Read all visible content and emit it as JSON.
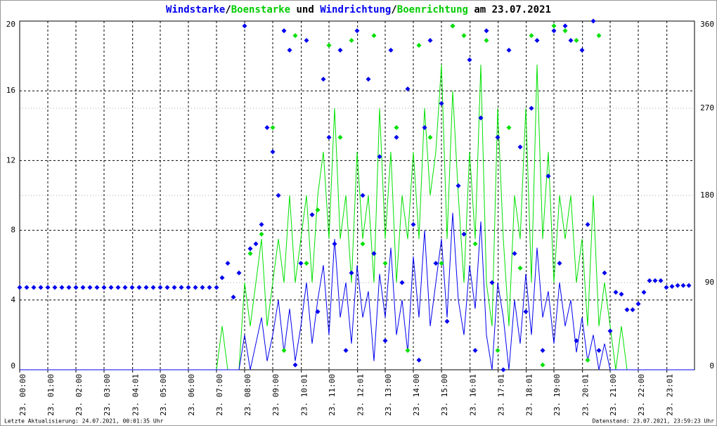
{
  "chart_data": {
    "type": "line",
    "title_separators": [
      "/",
      " und ",
      "/",
      " am 23.07.2021"
    ],
    "footer_left": "Letzte Aktualisierung: 24.07.2021, 00:01:35 Uhr",
    "footer_right": "Datenstand: 23.07.2021, 23:59:23 Uhr",
    "xlim": [
      0,
      24
    ],
    "xticks": [
      {
        "value": 0,
        "label": "23. 00:00"
      },
      {
        "value": 1,
        "label": "23. 01:00"
      },
      {
        "value": 2,
        "label": "23. 02:00"
      },
      {
        "value": 3,
        "label": "23. 03:00"
      },
      {
        "value": 4.017,
        "label": "23. 04:01"
      },
      {
        "value": 5,
        "label": "23. 05:00"
      },
      {
        "value": 6,
        "label": "23. 06:00"
      },
      {
        "value": 7,
        "label": "23. 07:00"
      },
      {
        "value": 8,
        "label": "23. 08:00"
      },
      {
        "value": 9,
        "label": "23. 09:00"
      },
      {
        "value": 10.017,
        "label": "23. 10:01"
      },
      {
        "value": 11,
        "label": "23. 11:00"
      },
      {
        "value": 12.017,
        "label": "23. 12:01"
      },
      {
        "value": 13,
        "label": "23. 13:00"
      },
      {
        "value": 14,
        "label": "23. 14:00"
      },
      {
        "value": 15,
        "label": "23. 15:00"
      },
      {
        "value": 16.017,
        "label": "23. 16:01"
      },
      {
        "value": 17.017,
        "label": "23. 17:01"
      },
      {
        "value": 18.017,
        "label": "23. 18:01"
      },
      {
        "value": 19,
        "label": "23. 19:00"
      },
      {
        "value": 20.017,
        "label": "23. 20:01"
      },
      {
        "value": 21,
        "label": "23. 21:00"
      },
      {
        "value": 22,
        "label": "23. 22:00"
      },
      {
        "value": 23.017,
        "label": "23. 23:01"
      }
    ],
    "ylim": [
      0,
      20
    ],
    "yticks": [
      0,
      4,
      8,
      12,
      16,
      20
    ],
    "y2lim": [
      0,
      360
    ],
    "y2ticks": [
      0,
      90,
      180,
      270,
      360
    ],
    "grid": true,
    "series": [
      {
        "name": "Boenstarke",
        "type": "line",
        "color": "#00e000",
        "x": [
          0,
          7.0,
          7.2,
          7.4,
          7.6,
          7.8,
          8.0,
          8.2,
          8.4,
          8.6,
          8.8,
          9.0,
          9.2,
          9.4,
          9.6,
          9.8,
          10.0,
          10.2,
          10.4,
          10.6,
          10.8,
          11.0,
          11.2,
          11.4,
          11.6,
          11.8,
          12.0,
          12.2,
          12.4,
          12.6,
          12.8,
          13.0,
          13.2,
          13.4,
          13.6,
          13.8,
          14.0,
          14.2,
          14.4,
          14.6,
          14.8,
          15.0,
          15.2,
          15.4,
          15.6,
          15.8,
          16.0,
          16.2,
          16.4,
          16.6,
          16.8,
          17.0,
          17.2,
          17.4,
          17.6,
          17.8,
          18.0,
          18.2,
          18.4,
          18.6,
          18.8,
          19.0,
          19.2,
          19.4,
          19.6,
          19.8,
          20.0,
          20.2,
          20.4,
          20.6,
          20.8,
          21.0,
          21.2,
          21.4,
          21.6,
          22,
          24
        ],
        "values": [
          0,
          0,
          2.5,
          0,
          0,
          0,
          5,
          2.5,
          5,
          7.5,
          2.5,
          5,
          7.5,
          5,
          10,
          5,
          7.5,
          10,
          5,
          10,
          12.5,
          7.5,
          15,
          7.5,
          10,
          5,
          12.5,
          7.5,
          10,
          5,
          15,
          7.5,
          12.5,
          5,
          10,
          7.5,
          12.5,
          7.5,
          15,
          10,
          12.5,
          17.5,
          7.5,
          16,
          10,
          5,
          12.5,
          7.5,
          17.5,
          5,
          2.5,
          15,
          7.5,
          2.5,
          10,
          7.5,
          15,
          5,
          17.5,
          7.5,
          12.5,
          5,
          10,
          7.5,
          10,
          5,
          7.5,
          2.5,
          10,
          2.5,
          5,
          2.5,
          0,
          2.5,
          0,
          0,
          0
        ]
      },
      {
        "name": "Windstarke",
        "type": "line",
        "color": "#0000ee",
        "x": [
          0,
          7.0,
          7.2,
          7.4,
          7.6,
          7.8,
          8.0,
          8.2,
          8.4,
          8.6,
          8.8,
          9.0,
          9.2,
          9.4,
          9.6,
          9.8,
          10.0,
          10.2,
          10.4,
          10.6,
          10.8,
          11.0,
          11.2,
          11.4,
          11.6,
          11.8,
          12.0,
          12.2,
          12.4,
          12.6,
          12.8,
          13.0,
          13.2,
          13.4,
          13.6,
          13.8,
          14.0,
          14.2,
          14.4,
          14.6,
          14.8,
          15.0,
          15.2,
          15.4,
          15.6,
          15.8,
          16.0,
          16.2,
          16.4,
          16.6,
          16.8,
          17.0,
          17.2,
          17.4,
          17.6,
          17.8,
          18.0,
          18.2,
          18.4,
          18.6,
          18.8,
          19.0,
          19.2,
          19.4,
          19.6,
          19.8,
          20.0,
          20.2,
          20.4,
          20.6,
          20.8,
          21.0,
          21.2,
          21.4,
          21.6,
          22,
          24
        ],
        "values": [
          0,
          0,
          0,
          0,
          0,
          0,
          2,
          0,
          1.5,
          3,
          0.5,
          2,
          4,
          1,
          3.5,
          0.5,
          2.5,
          5,
          1.5,
          4,
          6,
          2,
          7.5,
          3,
          5,
          1.5,
          6,
          3,
          4.5,
          0.5,
          5.5,
          3,
          7,
          2,
          4,
          1,
          6.5,
          3,
          8,
          2.5,
          5,
          7.5,
          3,
          9,
          4,
          2,
          6,
          3.5,
          8.5,
          2,
          0,
          5,
          3,
          0,
          4,
          1.5,
          5.5,
          2,
          7,
          3,
          4.5,
          1.5,
          5,
          2.5,
          4,
          1,
          3,
          0.5,
          2,
          0,
          1.5,
          0,
          0,
          0,
          0,
          0,
          0
        ]
      },
      {
        "name": "Windrichtung",
        "type": "scatter",
        "axis": "y2",
        "color": "#0000ee",
        "x": [
          0,
          0.25,
          0.5,
          0.75,
          1,
          1.25,
          1.5,
          1.75,
          2,
          2.25,
          2.5,
          2.75,
          3,
          3.25,
          3.5,
          3.75,
          4,
          4.25,
          4.5,
          4.75,
          5,
          5.25,
          5.5,
          5.75,
          6,
          6.25,
          6.5,
          6.75,
          7,
          7.2,
          7.4,
          7.6,
          7.8,
          8.0,
          8.2,
          8.4,
          8.6,
          8.8,
          9.0,
          9.2,
          9.4,
          9.6,
          9.8,
          10.0,
          10.2,
          10.4,
          10.6,
          10.8,
          11.0,
          11.2,
          11.4,
          11.6,
          11.8,
          12.0,
          12.2,
          12.4,
          12.6,
          12.8,
          13.0,
          13.2,
          13.4,
          13.6,
          13.8,
          14.0,
          14.2,
          14.4,
          14.6,
          14.8,
          15.0,
          15.2,
          15.4,
          15.6,
          15.8,
          16.0,
          16.2,
          16.4,
          16.6,
          16.8,
          17.0,
          17.2,
          17.4,
          17.6,
          17.8,
          18.0,
          18.2,
          18.4,
          18.6,
          18.8,
          19.0,
          19.2,
          19.4,
          19.6,
          19.8,
          20.0,
          20.2,
          20.4,
          20.6,
          20.8,
          21.0,
          21.2,
          21.4,
          21.6,
          21.8,
          22.0,
          22.2,
          22.4,
          22.6,
          22.8,
          23.0,
          23.2,
          23.4,
          23.6,
          23.8
        ],
        "values": [
          85,
          85,
          85,
          85,
          85,
          85,
          85,
          85,
          85,
          85,
          85,
          85,
          85,
          85,
          85,
          85,
          85,
          85,
          85,
          85,
          85,
          85,
          85,
          85,
          85,
          85,
          85,
          85,
          85,
          95,
          110,
          75,
          100,
          355,
          125,
          130,
          150,
          250,
          225,
          180,
          350,
          330,
          5,
          110,
          340,
          160,
          60,
          300,
          240,
          130,
          330,
          20,
          100,
          350,
          180,
          300,
          120,
          220,
          30,
          330,
          240,
          90,
          290,
          150,
          10,
          250,
          340,
          110,
          275,
          50,
          355,
          190,
          140,
          320,
          20,
          260,
          350,
          90,
          240,
          0,
          330,
          120,
          230,
          60,
          270,
          340,
          20,
          200,
          350,
          110,
          355,
          340,
          30,
          330,
          150,
          360,
          20,
          100,
          40,
          80,
          78,
          62,
          62,
          68,
          80,
          92,
          92,
          92,
          85,
          86,
          87,
          87,
          87
        ]
      },
      {
        "name": "Boenrichtung",
        "type": "scatter",
        "axis": "y2",
        "color": "#00e000",
        "x": [
          8.2,
          8.6,
          9.0,
          9.4,
          9.8,
          10.2,
          10.6,
          11.0,
          11.4,
          11.8,
          12.2,
          12.6,
          13.0,
          13.4,
          13.8,
          14.2,
          14.6,
          15.0,
          15.4,
          15.8,
          16.2,
          16.6,
          17.0,
          17.4,
          17.8,
          18.2,
          18.6,
          19.0,
          19.4,
          19.8,
          20.2,
          20.6
        ],
        "values": [
          120,
          140,
          250,
          20,
          345,
          110,
          165,
          335,
          240,
          340,
          130,
          345,
          110,
          250,
          20,
          335,
          240,
          110,
          355,
          345,
          130,
          340,
          20,
          250,
          105,
          345,
          5,
          355,
          350,
          340,
          10,
          345
        ]
      }
    ]
  }
}
